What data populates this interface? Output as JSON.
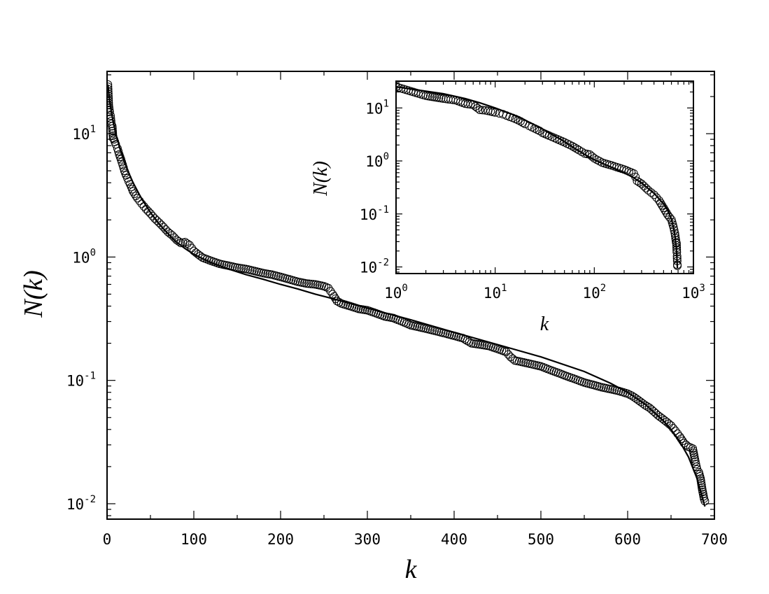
{
  "chart_data": [
    {
      "panel": "main",
      "type": "scatter",
      "xlabel": "k",
      "ylabel": "N(k)",
      "xscale": "linear",
      "yscale": "log",
      "xlim": [
        0,
        700
      ],
      "ylim": [
        0.0075,
        32
      ],
      "xticks": [
        0,
        100,
        200,
        300,
        400,
        500,
        600,
        700
      ],
      "xtick_labels": [
        "0",
        "100",
        "200",
        "300",
        "400",
        "500",
        "600",
        "700"
      ],
      "yticks": [
        0.01,
        0.1,
        1,
        10
      ],
      "ytick_labels": [
        {
          "base": "10",
          "exp": "-2"
        },
        {
          "base": "10",
          "exp": "-1"
        },
        {
          "base": "10",
          "exp": "0"
        },
        {
          "base": "10",
          "exp": "1"
        }
      ],
      "series": [
        {
          "kind": "markers",
          "marker": "open-circle",
          "points": [
            [
              1,
              25
            ],
            [
              2,
              17
            ],
            [
              3,
              15
            ],
            [
              4,
              14
            ],
            [
              5,
              12
            ],
            [
              6,
              11.5
            ],
            [
              7,
              9.2
            ],
            [
              8,
              9
            ],
            [
              9,
              8.6
            ],
            [
              10,
              8.2
            ],
            [
              12,
              7.6
            ],
            [
              14,
              6.8
            ],
            [
              16,
              6.2
            ],
            [
              18,
              5.6
            ],
            [
              20,
              5.0
            ],
            [
              22,
              4.6
            ],
            [
              25,
              4.1
            ],
            [
              28,
              3.7
            ],
            [
              30,
              3.4
            ],
            [
              35,
              3.0
            ],
            [
              40,
              2.7
            ],
            [
              45,
              2.45
            ],
            [
              50,
              2.25
            ],
            [
              55,
              2.05
            ],
            [
              60,
              1.9
            ],
            [
              65,
              1.75
            ],
            [
              70,
              1.6
            ],
            [
              75,
              1.5
            ],
            [
              80,
              1.38
            ],
            [
              85,
              1.3
            ],
            [
              90,
              1.32
            ],
            [
              95,
              1.25
            ],
            [
              100,
              1.12
            ],
            [
              105,
              1.05
            ],
            [
              110,
              0.99
            ],
            [
              120,
              0.93
            ],
            [
              130,
              0.88
            ],
            [
              140,
              0.85
            ],
            [
              150,
              0.82
            ],
            [
              160,
              0.8
            ],
            [
              170,
              0.77
            ],
            [
              180,
              0.74
            ],
            [
              190,
              0.72
            ],
            [
              200,
              0.69
            ],
            [
              210,
              0.66
            ],
            [
              220,
              0.63
            ],
            [
              230,
              0.61
            ],
            [
              240,
              0.6
            ],
            [
              250,
              0.58
            ],
            [
              255,
              0.56
            ],
            [
              260,
              0.5
            ],
            [
              265,
              0.44
            ],
            [
              270,
              0.42
            ],
            [
              280,
              0.4
            ],
            [
              290,
              0.38
            ],
            [
              300,
              0.37
            ],
            [
              310,
              0.35
            ],
            [
              320,
              0.33
            ],
            [
              330,
              0.32
            ],
            [
              340,
              0.3
            ],
            [
              350,
              0.28
            ],
            [
              360,
              0.27
            ],
            [
              370,
              0.26
            ],
            [
              380,
              0.25
            ],
            [
              390,
              0.24
            ],
            [
              400,
              0.23
            ],
            [
              410,
              0.22
            ],
            [
              420,
              0.2
            ],
            [
              430,
              0.195
            ],
            [
              440,
              0.19
            ],
            [
              450,
              0.18
            ],
            [
              460,
              0.17
            ],
            [
              465,
              0.155
            ],
            [
              470,
              0.145
            ],
            [
              480,
              0.14
            ],
            [
              490,
              0.135
            ],
            [
              500,
              0.13
            ],
            [
              510,
              0.122
            ],
            [
              520,
              0.115
            ],
            [
              530,
              0.108
            ],
            [
              540,
              0.102
            ],
            [
              550,
              0.096
            ],
            [
              560,
              0.092
            ],
            [
              570,
              0.088
            ],
            [
              580,
              0.085
            ],
            [
              590,
              0.082
            ],
            [
              600,
              0.078
            ],
            [
              605,
              0.075
            ],
            [
              610,
              0.071
            ],
            [
              615,
              0.067
            ],
            [
              620,
              0.063
            ],
            [
              625,
              0.06
            ],
            [
              630,
              0.056
            ],
            [
              635,
              0.052
            ],
            [
              640,
              0.049
            ],
            [
              645,
              0.046
            ],
            [
              650,
              0.043
            ],
            [
              655,
              0.039
            ],
            [
              660,
              0.035
            ],
            [
              665,
              0.031
            ],
            [
              670,
              0.029
            ],
            [
              675,
              0.028
            ],
            [
              678,
              0.022
            ],
            [
              680,
              0.019
            ],
            [
              682,
              0.018
            ],
            [
              684,
              0.016
            ],
            [
              686,
              0.013
            ],
            [
              688,
              0.011
            ],
            [
              689,
              0.0105
            ]
          ]
        },
        {
          "kind": "line",
          "style": "solid",
          "points": [
            [
              1,
              25
            ],
            [
              3,
              18.5
            ],
            [
              5,
              15
            ],
            [
              7,
              12.5
            ],
            [
              10,
              10
            ],
            [
              15,
              7.5
            ],
            [
              20,
              5.9
            ],
            [
              25,
              4.8
            ],
            [
              30,
              4.0
            ],
            [
              40,
              2.95
            ],
            [
              50,
              2.3
            ],
            [
              60,
              1.85
            ],
            [
              70,
              1.55
            ],
            [
              80,
              1.32
            ],
            [
              90,
              1.17
            ],
            [
              100,
              1.05
            ],
            [
              120,
              0.9
            ],
            [
              140,
              0.8
            ],
            [
              160,
              0.72
            ],
            [
              180,
              0.66
            ],
            [
              200,
              0.6
            ],
            [
              220,
              0.55
            ],
            [
              240,
              0.5
            ],
            [
              260,
              0.46
            ],
            [
              280,
              0.42
            ],
            [
              300,
              0.385
            ],
            [
              350,
              0.31
            ],
            [
              400,
              0.245
            ],
            [
              450,
              0.195
            ],
            [
              500,
              0.155
            ],
            [
              550,
              0.118
            ],
            [
              580,
              0.095
            ],
            [
              600,
              0.08
            ],
            [
              620,
              0.064
            ],
            [
              640,
              0.048
            ],
            [
              650,
              0.04
            ],
            [
              660,
              0.032
            ],
            [
              670,
              0.024
            ],
            [
              680,
              0.016
            ],
            [
              685,
              0.012
            ],
            [
              689,
              0.0095
            ]
          ]
        }
      ]
    },
    {
      "panel": "inset",
      "type": "scatter",
      "xlabel": "k",
      "ylabel": "N(k)",
      "xscale": "log",
      "yscale": "log",
      "xlim": [
        1,
        1000
      ],
      "ylim": [
        0.0075,
        32
      ],
      "xticks": [
        1,
        10,
        100,
        1000
      ],
      "xtick_labels": [
        {
          "base": "10",
          "exp": "0"
        },
        {
          "base": "10",
          "exp": "1"
        },
        {
          "base": "10",
          "exp": "2"
        },
        {
          "base": "10",
          "exp": "3"
        }
      ],
      "yticks": [
        0.01,
        0.1,
        1,
        10
      ],
      "ytick_labels": [
        {
          "base": "10",
          "exp": "-2"
        },
        {
          "base": "10",
          "exp": "-1"
        },
        {
          "base": "10",
          "exp": "0"
        },
        {
          "base": "10",
          "exp": "1"
        }
      ],
      "series": [
        {
          "kind": "markers",
          "marker": "open-circle",
          "points": [
            [
              1,
              25
            ],
            [
              2,
              17
            ],
            [
              3,
              15
            ],
            [
              4,
              14
            ],
            [
              5,
              12
            ],
            [
              6,
              11.5
            ],
            [
              7,
              9.2
            ],
            [
              8,
              9
            ],
            [
              9,
              8.6
            ],
            [
              10,
              8.2
            ],
            [
              11,
              7.9
            ],
            [
              12,
              7.6
            ],
            [
              13,
              7.2
            ],
            [
              14,
              6.8
            ],
            [
              15,
              6.5
            ],
            [
              16,
              6.2
            ],
            [
              17,
              5.9
            ],
            [
              18,
              5.6
            ],
            [
              20,
              5.0
            ],
            [
              22,
              4.6
            ],
            [
              25,
              4.1
            ],
            [
              28,
              3.7
            ],
            [
              30,
              3.4
            ],
            [
              35,
              3.0
            ],
            [
              40,
              2.7
            ],
            [
              50,
              2.25
            ],
            [
              60,
              1.9
            ],
            [
              70,
              1.6
            ],
            [
              80,
              1.38
            ],
            [
              90,
              1.32
            ],
            [
              100,
              1.12
            ],
            [
              120,
              0.93
            ],
            [
              150,
              0.82
            ],
            [
              200,
              0.69
            ],
            [
              250,
              0.58
            ],
            [
              260,
              0.5
            ],
            [
              270,
              0.42
            ],
            [
              300,
              0.37
            ],
            [
              350,
              0.28
            ],
            [
              400,
              0.23
            ],
            [
              450,
              0.18
            ],
            [
              500,
              0.13
            ],
            [
              550,
              0.096
            ],
            [
              600,
              0.078
            ],
            [
              630,
              0.056
            ],
            [
              650,
              0.043
            ],
            [
              660,
              0.035
            ],
            [
              670,
              0.029
            ],
            [
              675,
              0.028
            ],
            [
              680,
              0.019
            ],
            [
              684,
              0.016
            ],
            [
              686,
              0.013
            ],
            [
              688,
              0.011
            ],
            [
              689,
              0.0105
            ]
          ]
        },
        {
          "kind": "line",
          "style": "solid",
          "points": [
            [
              1,
              25
            ],
            [
              3,
              18.5
            ],
            [
              5,
              15
            ],
            [
              7,
              12.5
            ],
            [
              10,
              10
            ],
            [
              15,
              7.5
            ],
            [
              20,
              5.9
            ],
            [
              30,
              4.0
            ],
            [
              40,
              2.95
            ],
            [
              50,
              2.3
            ],
            [
              60,
              1.85
            ],
            [
              80,
              1.32
            ],
            [
              100,
              1.05
            ],
            [
              150,
              0.76
            ],
            [
              200,
              0.6
            ],
            [
              250,
              0.48
            ],
            [
              300,
              0.385
            ],
            [
              400,
              0.245
            ],
            [
              500,
              0.155
            ],
            [
              550,
              0.118
            ],
            [
              600,
              0.08
            ],
            [
              640,
              0.048
            ],
            [
              660,
              0.032
            ],
            [
              670,
              0.024
            ],
            [
              680,
              0.016
            ],
            [
              685,
              0.012
            ],
            [
              689,
              0.0095
            ]
          ]
        }
      ]
    }
  ]
}
